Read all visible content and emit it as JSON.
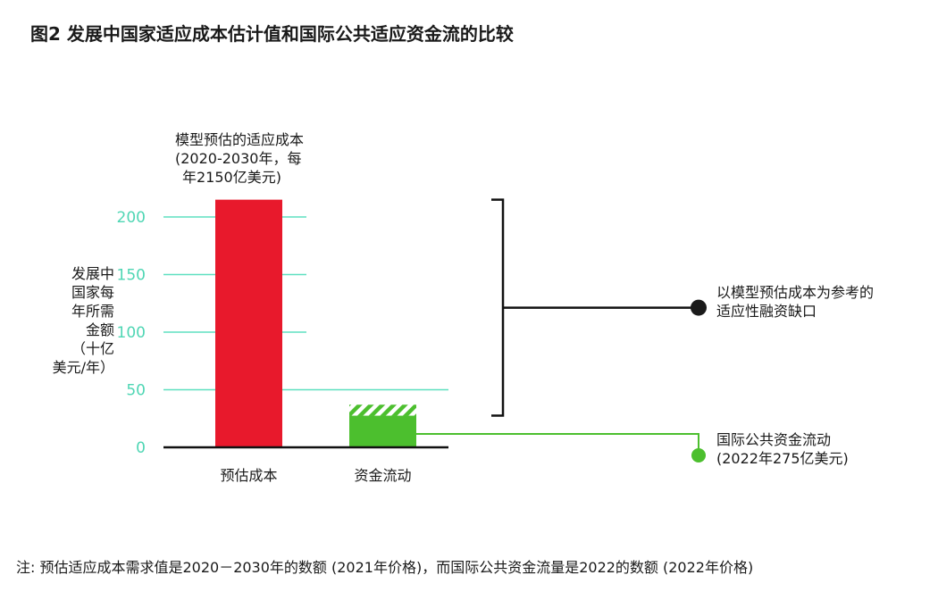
{
  "chart_data": {
    "type": "bar",
    "title": "图2  发展中国家适应成本估计值和国际公共适应资金流的比较",
    "ylabel": "发展中国家每年所需金额（十亿美元/年）",
    "ylabel_lines": [
      "发展中",
      "国家每",
      "年所需",
      "金额",
      "（十亿",
      "美元/年）"
    ],
    "ylim": [
      0,
      200
    ],
    "yticks": [
      0,
      50,
      100,
      150,
      200
    ],
    "grid": true,
    "categories": [
      "预估成本",
      "资金流动"
    ],
    "values": [
      215,
      27.5
    ],
    "hatched_extension": {
      "category": "资金流动",
      "from": 27.5,
      "to": 37
    },
    "annotations": {
      "bar1_label": [
        "模型预估的适应成本",
        "(2020-2030年，每",
        "年2150亿美元)"
      ],
      "gap_label": [
        "以模型预估成本为参考的",
        "适应性融资缺口"
      ],
      "flow_label": [
        "国际公共资金流动",
        "(2022年275亿美元)"
      ]
    },
    "note": "注: 预估适应成本需求值是2020－2030年的数额 (2021年价格)，而国际公共资金流量是2022的数额 (2022年价格)",
    "colors": {
      "cost_bar": "#e8192c",
      "flow_bar": "#4cbf2e",
      "grid": "#5ee0c0",
      "tick_labels": "#4fd6b4",
      "gap_marker": "#1a1a1a"
    }
  }
}
